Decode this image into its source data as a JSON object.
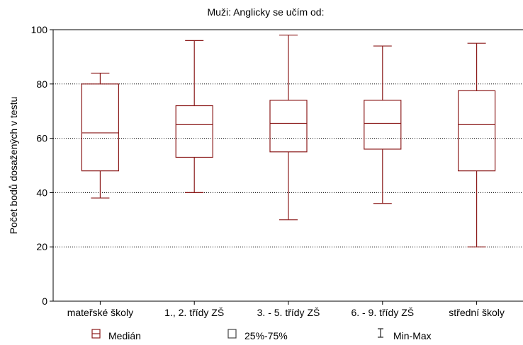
{
  "chart_data": {
    "type": "box",
    "title": "Muži: Anglicky se učím od:",
    "xlabel": "",
    "ylabel": "Počet bodů dosažených v testu",
    "ylim": [
      0,
      100
    ],
    "yticks": [
      0,
      20,
      40,
      60,
      80,
      100
    ],
    "grid": "horizontal dotted",
    "legend_position": "bottom",
    "color": "#8b1a1a",
    "categories": [
      "mateřské školy",
      "1., 2. třídy ZŠ",
      "3. - 5. třídy ZŠ",
      "6. - 9. třídy ZŠ",
      "střední školy"
    ],
    "boxes": [
      {
        "min": 38,
        "q1": 48,
        "median": 62,
        "q3": 80,
        "max": 84
      },
      {
        "min": 40,
        "q1": 53,
        "median": 65,
        "q3": 72,
        "max": 96
      },
      {
        "min": 30,
        "q1": 55,
        "median": 65.5,
        "q3": 74,
        "max": 98
      },
      {
        "min": 36,
        "q1": 56,
        "median": 65.5,
        "q3": 74,
        "max": 94
      },
      {
        "min": 20,
        "q1": 48,
        "median": 65,
        "q3": 77.5,
        "max": 95
      }
    ],
    "legend": [
      {
        "label": "Medián",
        "icon": "median-box-icon"
      },
      {
        "label": "25%-75%",
        "icon": "box-icon"
      },
      {
        "label": "Min-Max",
        "icon": "whisker-icon"
      }
    ]
  }
}
